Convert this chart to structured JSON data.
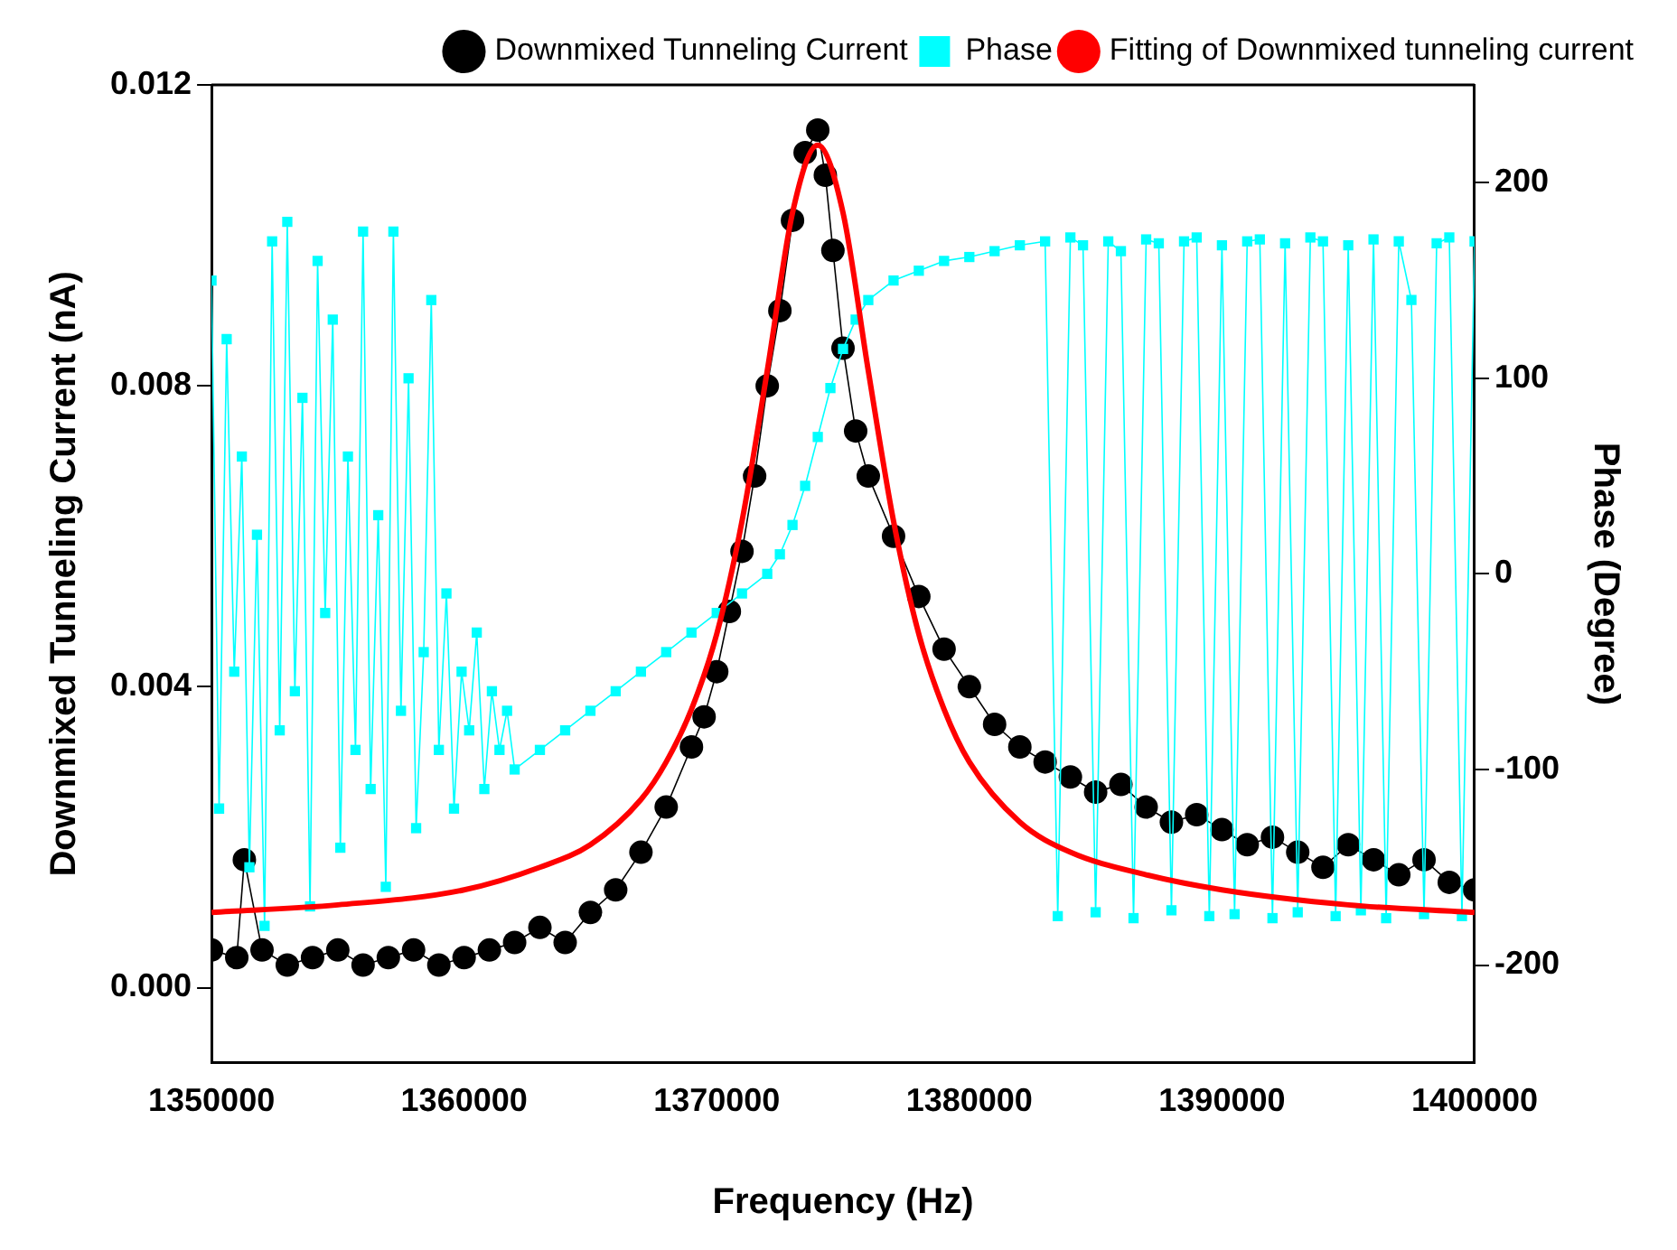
{
  "chart_data": {
    "type": "line",
    "xlabel": "Frequency (Hz)",
    "ylabel": "Downmixed Tunneling Current (nA)",
    "y2label": "Phase (Degree)",
    "xlim": [
      1350000,
      1400000
    ],
    "xticks": [
      1350000,
      1360000,
      1370000,
      1380000,
      1390000,
      1400000
    ],
    "ylim": [
      -0.001,
      0.012
    ],
    "yticks": [
      {
        "value": 0,
        "label": "0.000"
      },
      {
        "value": 0.004,
        "label": "0.004"
      },
      {
        "value": 0.008,
        "label": "0.008"
      },
      {
        "value": 0.012,
        "label": "0.012"
      }
    ],
    "y2lim": [
      -250,
      250
    ],
    "y2ticks": [
      -200,
      -100,
      0,
      100,
      200
    ],
    "grid": false,
    "legend": "top right",
    "series": [
      {
        "name": "Downmixed Tunneling Current",
        "marker": "circle",
        "color": "#000000",
        "x": [
          1350000,
          1351000,
          1351300,
          1352000,
          1353000,
          1354000,
          1355000,
          1356000,
          1357000,
          1358000,
          1359000,
          1360000,
          1361000,
          1362000,
          1363000,
          1364000,
          1365000,
          1366000,
          1367000,
          1368000,
          1369000,
          1369500,
          1370000,
          1370500,
          1371000,
          1371500,
          1372000,
          1372500,
          1373000,
          1373500,
          1374000,
          1374300,
          1374600,
          1375000,
          1375500,
          1376000,
          1377000,
          1378000,
          1379000,
          1380000,
          1381000,
          1382000,
          1383000,
          1384000,
          1385000,
          1386000,
          1387000,
          1388000,
          1389000,
          1390000,
          1391000,
          1392000,
          1393000,
          1394000,
          1395000,
          1396000,
          1397000,
          1398000,
          1399000,
          1400000
        ],
        "values": [
          0.0005,
          0.0004,
          0.0017,
          0.0005,
          0.0003,
          0.0004,
          0.0005,
          0.0003,
          0.0004,
          0.0005,
          0.0003,
          0.0004,
          0.0005,
          0.0006,
          0.0008,
          0.0006,
          0.001,
          0.0013,
          0.0018,
          0.0024,
          0.0032,
          0.0036,
          0.0042,
          0.005,
          0.0058,
          0.0068,
          0.008,
          0.009,
          0.0102,
          0.0111,
          0.0114,
          0.0108,
          0.0098,
          0.0085,
          0.0074,
          0.0068,
          0.006,
          0.0052,
          0.0045,
          0.004,
          0.0035,
          0.0032,
          0.003,
          0.0028,
          0.0026,
          0.0027,
          0.0024,
          0.0022,
          0.0023,
          0.0021,
          0.0019,
          0.002,
          0.0018,
          0.0016,
          0.0019,
          0.0017,
          0.0015,
          0.0017,
          0.0014,
          0.0013
        ]
      },
      {
        "name": "Phase",
        "marker": "square",
        "axis": "y2",
        "color": "#00ffff",
        "x": [
          1350000,
          1350300,
          1350600,
          1350900,
          1351200,
          1351500,
          1351800,
          1352100,
          1352400,
          1352700,
          1353000,
          1353300,
          1353600,
          1353900,
          1354200,
          1354500,
          1354800,
          1355100,
          1355400,
          1355700,
          1356000,
          1356300,
          1356600,
          1356900,
          1357200,
          1357500,
          1357800,
          1358100,
          1358400,
          1358700,
          1359000,
          1359300,
          1359600,
          1359900,
          1360200,
          1360500,
          1360800,
          1361100,
          1361400,
          1361700,
          1362000,
          1363000,
          1364000,
          1365000,
          1366000,
          1367000,
          1368000,
          1369000,
          1370000,
          1371000,
          1372000,
          1372500,
          1373000,
          1373500,
          1374000,
          1374500,
          1375000,
          1375500,
          1376000,
          1377000,
          1378000,
          1379000,
          1380000,
          1381000,
          1382000,
          1383000,
          1383500,
          1384000,
          1384500,
          1385000,
          1385500,
          1386000,
          1386500,
          1387000,
          1387500,
          1388000,
          1388500,
          1389000,
          1389500,
          1390000,
          1390500,
          1391000,
          1391500,
          1392000,
          1392500,
          1393000,
          1393500,
          1394000,
          1394500,
          1395000,
          1395500,
          1396000,
          1396500,
          1397000,
          1397500,
          1398000,
          1398500,
          1399000,
          1399500,
          1400000
        ],
        "values": [
          150,
          -120,
          120,
          -50,
          60,
          -150,
          20,
          -180,
          170,
          -80,
          180,
          -60,
          90,
          -170,
          160,
          -20,
          130,
          -140,
          60,
          -90,
          175,
          -110,
          30,
          -160,
          175,
          -70,
          100,
          -130,
          -40,
          140,
          -90,
          -10,
          -120,
          -50,
          -80,
          -30,
          -110,
          -60,
          -90,
          -70,
          -100,
          -90,
          -80,
          -70,
          -60,
          -50,
          -40,
          -30,
          -20,
          -10,
          0,
          10,
          25,
          45,
          70,
          95,
          115,
          130,
          140,
          150,
          155,
          160,
          162,
          165,
          168,
          170,
          -175,
          172,
          168,
          -173,
          170,
          165,
          -176,
          171,
          169,
          -172,
          170,
          172,
          -175,
          168,
          -174,
          170,
          171,
          -176,
          169,
          -173,
          172,
          170,
          -175,
          168,
          -172,
          171,
          -176,
          170,
          140,
          -174,
          169,
          172,
          -175,
          170
        ]
      },
      {
        "name": "Fitting of Downmixed tunneling current",
        "marker": "none",
        "color": "#ff0000",
        "x": [
          1350000,
          1355000,
          1360000,
          1363000,
          1365000,
          1367000,
          1368000,
          1369000,
          1370000,
          1371000,
          1372000,
          1373000,
          1374000,
          1375000,
          1376000,
          1377000,
          1378000,
          1379000,
          1380000,
          1382000,
          1384000,
          1387000,
          1390000,
          1395000,
          1400000
        ],
        "values": [
          0.001,
          0.0011,
          0.0013,
          0.0016,
          0.0019,
          0.0025,
          0.003,
          0.0037,
          0.0047,
          0.0062,
          0.0082,
          0.0103,
          0.0112,
          0.0103,
          0.0082,
          0.0062,
          0.0047,
          0.0037,
          0.003,
          0.0022,
          0.0018,
          0.0015,
          0.0013,
          0.0011,
          0.001
        ]
      }
    ]
  }
}
